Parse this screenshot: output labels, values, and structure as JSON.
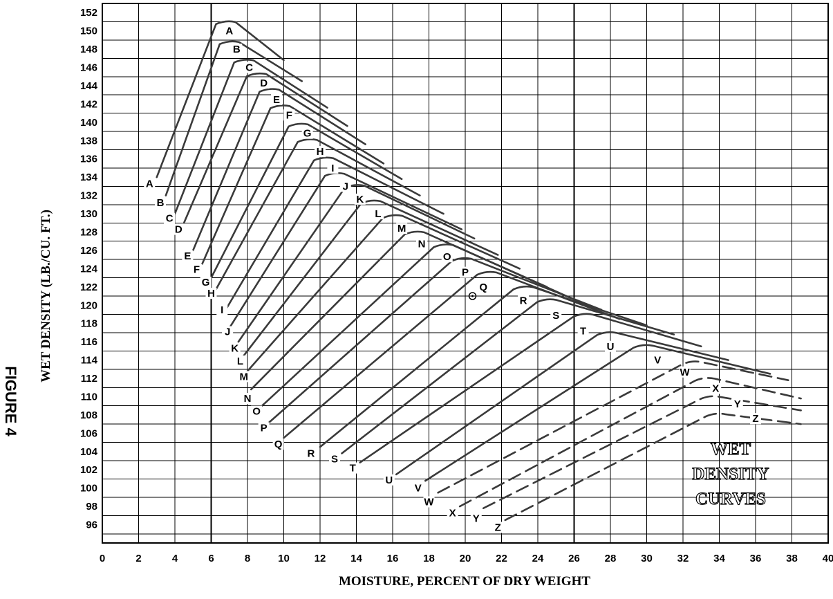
{
  "figure_label": "FIGURE 4",
  "chart_data": {
    "type": "line",
    "title": "",
    "panel_text": [
      "WET",
      "DENSITY",
      "CURVES"
    ],
    "xlabel": "MOISTURE, PERCENT OF DRY WEIGHT",
    "ylabel": "WET DENSITY (LB./CU. FT.)",
    "xlim": [
      0,
      40
    ],
    "ylim": [
      94,
      153
    ],
    "x_ticks": [
      "0",
      "2",
      "4",
      "6",
      "8",
      "10",
      "12",
      "14",
      "16",
      "18",
      "20",
      "22",
      "24",
      "26",
      "28",
      "30",
      "32",
      "34",
      "36",
      "38",
      "40"
    ],
    "y_ticks": [
      "96",
      "98",
      "100",
      "102",
      "104",
      "106",
      "108",
      "110",
      "112",
      "114",
      "116",
      "118",
      "120",
      "122",
      "124",
      "126",
      "128",
      "130",
      "132",
      "134",
      "136",
      "138",
      "140",
      "142",
      "144",
      "146",
      "148",
      "150",
      "152"
    ],
    "grid": true,
    "legend": "none",
    "point_marker": {
      "label": "Q",
      "x": 20.4,
      "y": 121.0
    },
    "series": [
      {
        "name": "A",
        "dashed": false,
        "start": [
          3.0,
          134.0
        ],
        "peak": [
          6.8,
          151.2
        ],
        "end": [
          10.0,
          146.8
        ]
      },
      {
        "name": "B",
        "dashed": false,
        "start": [
          3.5,
          132.0
        ],
        "peak": [
          7.0,
          149.0
        ],
        "end": [
          11.0,
          144.5
        ]
      },
      {
        "name": "C",
        "dashed": false,
        "start": [
          4.0,
          130.0
        ],
        "peak": [
          7.8,
          147.0
        ],
        "end": [
          12.4,
          141.6
        ]
      },
      {
        "name": "D",
        "dashed": false,
        "start": [
          4.5,
          129.0
        ],
        "peak": [
          8.5,
          145.5
        ],
        "end": [
          13.5,
          139.6
        ]
      },
      {
        "name": "E",
        "dashed": false,
        "start": [
          5.0,
          126.0
        ],
        "peak": [
          9.2,
          143.8
        ],
        "end": [
          14.5,
          137.6
        ]
      },
      {
        "name": "F",
        "dashed": false,
        "start": [
          5.5,
          124.5
        ],
        "peak": [
          9.8,
          142.0
        ],
        "end": [
          15.5,
          135.5
        ]
      },
      {
        "name": "G",
        "dashed": false,
        "start": [
          6.0,
          123.0
        ],
        "peak": [
          10.8,
          140.0
        ],
        "end": [
          16.5,
          133.8
        ]
      },
      {
        "name": "H",
        "dashed": false,
        "start": [
          6.2,
          121.5
        ],
        "peak": [
          11.3,
          138.3
        ],
        "end": [
          17.5,
          132.0
        ]
      },
      {
        "name": "I",
        "dashed": false,
        "start": [
          6.8,
          119.5
        ],
        "peak": [
          12.2,
          136.3
        ],
        "end": [
          18.8,
          130.0
        ]
      },
      {
        "name": "J",
        "dashed": false,
        "start": [
          7.0,
          117.5
        ],
        "peak": [
          12.8,
          134.6
        ],
        "end": [
          19.8,
          128.3
        ]
      },
      {
        "name": "K",
        "dashed": false,
        "start": [
          7.5,
          116.0
        ],
        "peak": [
          13.9,
          133.3
        ],
        "end": [
          20.5,
          127.3
        ]
      },
      {
        "name": "L",
        "dashed": false,
        "start": [
          7.8,
          114.5
        ],
        "peak": [
          14.8,
          131.6
        ],
        "end": [
          21.8,
          125.5
        ]
      },
      {
        "name": "M",
        "dashed": false,
        "start": [
          8.0,
          112.8
        ],
        "peak": [
          16.0,
          130.0
        ],
        "end": [
          23.0,
          124.0
        ]
      },
      {
        "name": "N",
        "dashed": false,
        "start": [
          8.2,
          110.8
        ],
        "peak": [
          17.2,
          128.2
        ],
        "end": [
          24.5,
          122.0
        ]
      },
      {
        "name": "O",
        "dashed": false,
        "start": [
          8.8,
          109.0
        ],
        "peak": [
          18.8,
          126.8
        ],
        "end": [
          25.8,
          120.8
        ]
      },
      {
        "name": "P",
        "dashed": false,
        "start": [
          9.2,
          107.2
        ],
        "peak": [
          19.8,
          125.3
        ],
        "end": [
          27.5,
          119.5
        ]
      },
      {
        "name": "Q",
        "dashed": false,
        "start": [
          10.0,
          105.5
        ],
        "peak": [
          21.2,
          123.8
        ],
        "end": [
          28.5,
          118.5
        ]
      },
      {
        "name": "R",
        "dashed": false,
        "start": [
          12.0,
          104.5
        ],
        "peak": [
          23.2,
          122.2
        ],
        "end": [
          30.0,
          117.8
        ]
      },
      {
        "name": "S",
        "dashed": false,
        "start": [
          13.2,
          103.8
        ],
        "peak": [
          24.5,
          120.8
        ],
        "end": [
          31.5,
          116.8
        ]
      },
      {
        "name": "T",
        "dashed": false,
        "start": [
          14.2,
          102.8
        ],
        "peak": [
          26.5,
          119.2
        ],
        "end": [
          33.0,
          115.5
        ]
      },
      {
        "name": "U",
        "dashed": false,
        "start": [
          16.2,
          101.5
        ],
        "peak": [
          27.8,
          117.2
        ],
        "end": [
          34.5,
          114.0
        ]
      },
      {
        "name": "V",
        "dashed": false,
        "start": [
          17.8,
          100.8
        ],
        "peak": [
          29.8,
          115.8
        ],
        "end": [
          36.8,
          112.5
        ]
      },
      {
        "name": "W",
        "dashed": true,
        "start": [
          18.5,
          99.5
        ],
        "peak": [
          32.5,
          114.0
        ],
        "end": [
          37.8,
          111.8
        ]
      },
      {
        "name": "X",
        "dashed": true,
        "start": [
          19.7,
          98.0
        ],
        "peak": [
          33.2,
          112.2
        ],
        "end": [
          38.5,
          109.8
        ]
      },
      {
        "name": "Y",
        "dashed": true,
        "start": [
          21.0,
          97.8
        ],
        "peak": [
          33.5,
          110.2
        ],
        "end": [
          38.5,
          108.5
        ]
      },
      {
        "name": "Z",
        "dashed": true,
        "start": [
          22.2,
          96.5
        ],
        "peak": [
          33.8,
          108.3
        ],
        "end": [
          38.5,
          107.0
        ]
      }
    ],
    "curve_labels": [
      {
        "text": "A",
        "x": 2.6,
        "y": 133.3,
        "pos": "start"
      },
      {
        "text": "B",
        "x": 3.2,
        "y": 131.2,
        "pos": "start"
      },
      {
        "text": "C",
        "x": 3.7,
        "y": 129.5,
        "pos": "start"
      },
      {
        "text": "D",
        "x": 4.2,
        "y": 128.3,
        "pos": "start"
      },
      {
        "text": "E",
        "x": 4.7,
        "y": 125.4,
        "pos": "start"
      },
      {
        "text": "F",
        "x": 5.2,
        "y": 123.9,
        "pos": "start"
      },
      {
        "text": "G",
        "x": 5.7,
        "y": 122.5,
        "pos": "start"
      },
      {
        "text": "H",
        "x": 6.0,
        "y": 121.3,
        "pos": "start"
      },
      {
        "text": "I",
        "x": 6.6,
        "y": 119.5,
        "pos": "start"
      },
      {
        "text": "J",
        "x": 6.9,
        "y": 117.1,
        "pos": "start"
      },
      {
        "text": "K",
        "x": 7.3,
        "y": 115.3,
        "pos": "start"
      },
      {
        "text": "L",
        "x": 7.6,
        "y": 113.9,
        "pos": "start"
      },
      {
        "text": "M",
        "x": 7.8,
        "y": 112.2,
        "pos": "start"
      },
      {
        "text": "N",
        "x": 8.0,
        "y": 109.8,
        "pos": "start"
      },
      {
        "text": "O",
        "x": 8.5,
        "y": 108.4,
        "pos": "start"
      },
      {
        "text": "P",
        "x": 8.9,
        "y": 106.6,
        "pos": "start"
      },
      {
        "text": "Q",
        "x": 9.7,
        "y": 104.8,
        "pos": "start"
      },
      {
        "text": "R",
        "x": 11.5,
        "y": 103.8,
        "pos": "start"
      },
      {
        "text": "S",
        "x": 12.8,
        "y": 103.2,
        "pos": "start"
      },
      {
        "text": "T",
        "x": 13.8,
        "y": 102.2,
        "pos": "start"
      },
      {
        "text": "U",
        "x": 15.8,
        "y": 100.9,
        "pos": "start"
      },
      {
        "text": "V",
        "x": 17.4,
        "y": 100.0,
        "pos": "start"
      },
      {
        "text": "W",
        "x": 18.0,
        "y": 98.5,
        "pos": "start"
      },
      {
        "text": "X",
        "x": 19.3,
        "y": 97.3,
        "pos": "start"
      },
      {
        "text": "Y",
        "x": 20.6,
        "y": 96.7,
        "pos": "start"
      },
      {
        "text": "Z",
        "x": 21.8,
        "y": 95.7,
        "pos": "start"
      },
      {
        "text": "A",
        "x": 7.0,
        "y": 150.0,
        "pos": "peak"
      },
      {
        "text": "B",
        "x": 7.4,
        "y": 148.0,
        "pos": "peak"
      },
      {
        "text": "C",
        "x": 8.1,
        "y": 146.0,
        "pos": "peak"
      },
      {
        "text": "D",
        "x": 8.9,
        "y": 144.3,
        "pos": "peak"
      },
      {
        "text": "E",
        "x": 9.6,
        "y": 142.5,
        "pos": "peak"
      },
      {
        "text": "F",
        "x": 10.3,
        "y": 140.8,
        "pos": "peak"
      },
      {
        "text": "G",
        "x": 11.3,
        "y": 138.8,
        "pos": "peak"
      },
      {
        "text": "H",
        "x": 12.0,
        "y": 136.8,
        "pos": "peak"
      },
      {
        "text": "I",
        "x": 12.7,
        "y": 135.0,
        "pos": "peak"
      },
      {
        "text": "J",
        "x": 13.4,
        "y": 133.0,
        "pos": "peak"
      },
      {
        "text": "K",
        "x": 14.2,
        "y": 131.6,
        "pos": "peak"
      },
      {
        "text": "L",
        "x": 15.2,
        "y": 130.0,
        "pos": "peak"
      },
      {
        "text": "M",
        "x": 16.5,
        "y": 128.4,
        "pos": "peak"
      },
      {
        "text": "N",
        "x": 17.6,
        "y": 126.7,
        "pos": "peak"
      },
      {
        "text": "O",
        "x": 19.0,
        "y": 125.3,
        "pos": "peak"
      },
      {
        "text": "P",
        "x": 20.0,
        "y": 123.6,
        "pos": "peak"
      },
      {
        "text": "Q",
        "x": 21.0,
        "y": 122.0,
        "pos": "peak"
      },
      {
        "text": "R",
        "x": 23.2,
        "y": 120.5,
        "pos": "peak"
      },
      {
        "text": "S",
        "x": 25.0,
        "y": 118.9,
        "pos": "peak"
      },
      {
        "text": "T",
        "x": 26.5,
        "y": 117.2,
        "pos": "peak"
      },
      {
        "text": "U",
        "x": 28.0,
        "y": 115.5,
        "pos": "peak"
      },
      {
        "text": "V",
        "x": 30.6,
        "y": 114.0,
        "pos": "peak"
      },
      {
        "text": "W",
        "x": 32.1,
        "y": 112.7,
        "pos": "peak"
      },
      {
        "text": "X",
        "x": 33.8,
        "y": 110.9,
        "pos": "peak"
      },
      {
        "text": "Y",
        "x": 35.0,
        "y": 109.2,
        "pos": "peak"
      },
      {
        "text": "Z",
        "x": 36.0,
        "y": 107.6,
        "pos": "peak"
      }
    ]
  }
}
